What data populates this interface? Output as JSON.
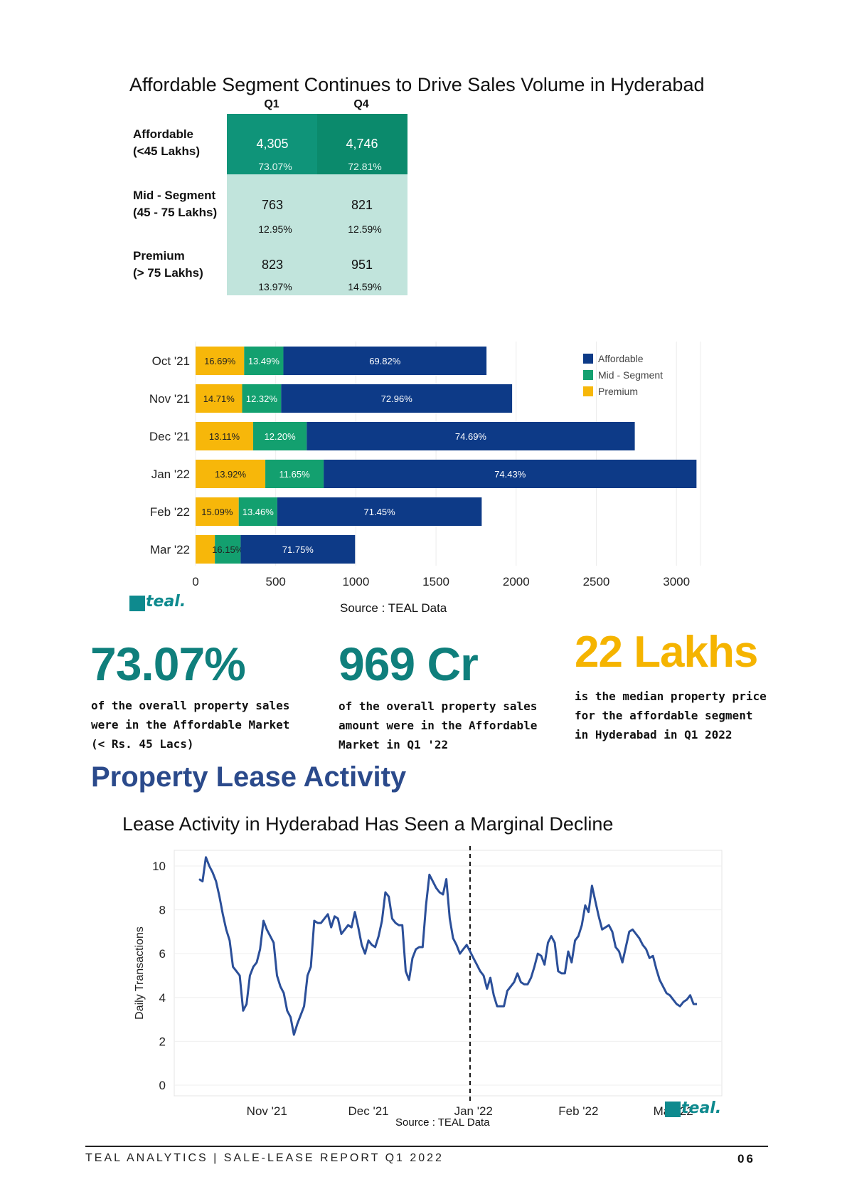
{
  "table": {
    "title": "Affordable Segment Continues to Drive Sales Volume in Hyderabad",
    "columns": [
      "Q1",
      "Q4"
    ],
    "rows": [
      {
        "label": "Affordable\n(<45 Lakhs)",
        "q1": "4,305",
        "q1_pct": "73.07%",
        "q4": "4,746",
        "q4_pct": "72.81%"
      },
      {
        "label": "Mid - Segment\n(45 - 75 Lakhs)",
        "q1": "763",
        "q1_pct": "12.95%",
        "q4": "821",
        "q4_pct": "12.59%"
      },
      {
        "label": "Premium\n(> 75 Lakhs)",
        "q1": "823",
        "q1_pct": "13.97%",
        "q4": "951",
        "q4_pct": "14.59%"
      }
    ]
  },
  "chart_data": [
    {
      "type": "bar",
      "orientation": "horizontal",
      "stacked": true,
      "categories": [
        "Oct '21",
        "Nov '21",
        "Dec '21",
        "Jan '22",
        "Feb '22",
        "Mar '22"
      ],
      "totals": [
        1815,
        1975,
        2740,
        3125,
        1785,
        995
      ],
      "series": [
        {
          "name": "Premium",
          "color": "#f7b70a",
          "labels": [
            "16.69%",
            "14.71%",
            "13.11%",
            "13.92%",
            "15.09%",
            ""
          ],
          "share": [
            0.1669,
            0.1471,
            0.1311,
            0.1392,
            0.1509,
            0.121
          ]
        },
        {
          "name": "Mid - Segment",
          "color": "#13a06f",
          "labels": [
            "13.49%",
            "12.32%",
            "12.20%",
            "11.65%",
            "13.46%",
            "16.15%"
          ],
          "share": [
            0.1349,
            0.1232,
            0.122,
            0.1165,
            0.1346,
            0.1615
          ]
        },
        {
          "name": "Affordable",
          "color": "#0d3a87",
          "labels": [
            "69.82%",
            "72.96%",
            "74.69%",
            "74.43%",
            "71.45%",
            "71.75%"
          ],
          "share": [
            0.6982,
            0.7296,
            0.7469,
            0.7443,
            0.7145,
            0.7175
          ]
        }
      ],
      "legend": [
        "Affordable",
        "Mid - Segment",
        "Premium"
      ],
      "xticks": [
        0,
        500,
        1000,
        1500,
        2000,
        2500,
        3000
      ],
      "xlim": [
        0,
        3150
      ],
      "source": "Source : TEAL Data",
      "legend_position": "top-right"
    },
    {
      "type": "line",
      "title": "Lease Activity in Hyderabad Has Seen a Marginal Decline",
      "ylabel": "Daily Transactions",
      "ylim": [
        0,
        10.8
      ],
      "yticks": [
        0,
        2,
        4,
        6,
        8,
        10
      ],
      "xticks": [
        {
          "label": "Nov '21",
          "day": 20
        },
        {
          "label": "Dec '21",
          "day": 50
        },
        {
          "label": "Jan '22",
          "day": 81
        },
        {
          "label": "Feb '22",
          "day": 112
        },
        {
          "label": "Mar '22",
          "day": 140
        }
      ],
      "marker_day": 80,
      "color": "#2b4f99",
      "source": "Source : TEAL Data",
      "series": [
        {
          "values": [
            [
              0,
              9.4
            ],
            [
              1,
              9.3
            ],
            [
              2,
              10.4
            ],
            [
              3,
              10.0
            ],
            [
              4,
              9.7
            ],
            [
              5,
              9.3
            ],
            [
              6,
              8.6
            ],
            [
              7,
              7.8
            ],
            [
              8,
              7.1
            ],
            [
              9,
              6.6
            ],
            [
              10,
              5.4
            ],
            [
              11,
              5.2
            ],
            [
              12,
              5.0
            ],
            [
              13,
              3.4
            ],
            [
              14,
              3.7
            ],
            [
              15,
              5.0
            ],
            [
              16,
              5.4
            ],
            [
              17,
              5.6
            ],
            [
              18,
              6.2
            ],
            [
              19,
              7.5
            ],
            [
              20,
              7.1
            ],
            [
              21,
              6.8
            ],
            [
              22,
              6.5
            ],
            [
              23,
              5.0
            ],
            [
              24,
              4.5
            ],
            [
              25,
              4.2
            ],
            [
              26,
              3.4
            ],
            [
              27,
              3.1
            ],
            [
              28,
              2.3
            ],
            [
              29,
              2.8
            ],
            [
              30,
              3.2
            ],
            [
              31,
              3.6
            ],
            [
              32,
              5.0
            ],
            [
              33,
              5.4
            ],
            [
              34,
              7.5
            ],
            [
              35,
              7.4
            ],
            [
              36,
              7.4
            ],
            [
              37,
              7.6
            ],
            [
              38,
              7.8
            ],
            [
              39,
              7.2
            ],
            [
              40,
              7.7
            ],
            [
              41,
              7.6
            ],
            [
              42,
              6.9
            ],
            [
              43,
              7.1
            ],
            [
              44,
              7.3
            ],
            [
              45,
              7.2
            ],
            [
              46,
              7.9
            ],
            [
              47,
              7.2
            ],
            [
              48,
              6.4
            ],
            [
              49,
              6.0
            ],
            [
              50,
              6.6
            ],
            [
              51,
              6.4
            ],
            [
              52,
              6.3
            ],
            [
              53,
              6.8
            ],
            [
              54,
              7.5
            ],
            [
              55,
              8.8
            ],
            [
              56,
              8.6
            ],
            [
              57,
              7.6
            ],
            [
              58,
              7.4
            ],
            [
              59,
              7.3
            ],
            [
              60,
              7.3
            ],
            [
              61,
              5.2
            ],
            [
              62,
              4.8
            ],
            [
              63,
              5.8
            ],
            [
              64,
              6.2
            ],
            [
              65,
              6.3
            ],
            [
              66,
              6.3
            ],
            [
              67,
              8.2
            ],
            [
              68,
              9.6
            ],
            [
              69,
              9.3
            ],
            [
              70,
              9.0
            ],
            [
              71,
              8.8
            ],
            [
              72,
              8.7
            ],
            [
              73,
              9.4
            ],
            [
              74,
              7.6
            ],
            [
              75,
              6.7
            ],
            [
              76,
              6.4
            ],
            [
              77,
              6.0
            ],
            [
              78,
              6.2
            ],
            [
              79,
              6.4
            ],
            [
              80,
              6.1
            ],
            [
              81,
              5.8
            ],
            [
              82,
              5.5
            ],
            [
              83,
              5.2
            ],
            [
              84,
              5.0
            ],
            [
              85,
              4.4
            ],
            [
              86,
              4.9
            ],
            [
              87,
              4.1
            ],
            [
              88,
              3.6
            ],
            [
              89,
              3.6
            ],
            [
              90,
              3.6
            ],
            [
              91,
              4.3
            ],
            [
              92,
              4.5
            ],
            [
              93,
              4.7
            ],
            [
              94,
              5.1
            ],
            [
              95,
              4.7
            ],
            [
              96,
              4.6
            ],
            [
              97,
              4.6
            ],
            [
              98,
              4.9
            ],
            [
              99,
              5.4
            ],
            [
              100,
              6.0
            ],
            [
              101,
              5.9
            ],
            [
              102,
              5.5
            ],
            [
              103,
              6.5
            ],
            [
              104,
              6.8
            ],
            [
              105,
              6.5
            ],
            [
              106,
              5.2
            ],
            [
              107,
              5.1
            ],
            [
              108,
              5.1
            ],
            [
              109,
              6.1
            ],
            [
              110,
              5.6
            ],
            [
              111,
              6.6
            ],
            [
              112,
              6.8
            ],
            [
              113,
              7.3
            ],
            [
              114,
              8.2
            ],
            [
              115,
              7.9
            ],
            [
              116,
              9.1
            ],
            [
              117,
              8.4
            ],
            [
              118,
              7.7
            ],
            [
              119,
              7.1
            ],
            [
              120,
              7.2
            ],
            [
              121,
              7.3
            ],
            [
              122,
              7.0
            ],
            [
              123,
              6.3
            ],
            [
              124,
              6.1
            ],
            [
              125,
              5.6
            ],
            [
              126,
              6.3
            ],
            [
              127,
              7.0
            ],
            [
              128,
              7.1
            ],
            [
              129,
              6.9
            ],
            [
              130,
              6.7
            ],
            [
              131,
              6.4
            ],
            [
              132,
              6.2
            ],
            [
              133,
              5.8
            ],
            [
              134,
              5.9
            ],
            [
              135,
              5.3
            ],
            [
              136,
              4.8
            ],
            [
              137,
              4.5
            ],
            [
              138,
              4.2
            ],
            [
              139,
              4.1
            ],
            [
              140,
              3.9
            ],
            [
              141,
              3.7
            ],
            [
              142,
              3.6
            ],
            [
              143,
              3.8
            ],
            [
              144,
              3.9
            ],
            [
              145,
              4.1
            ],
            [
              146,
              3.7
            ],
            [
              147,
              3.7
            ]
          ]
        }
      ]
    }
  ],
  "stats": [
    {
      "value": "73.07%",
      "text": "of the overall property sales were in the Affordable Market (< Rs. 45 Lacs)",
      "color": "#0f7f7c"
    },
    {
      "value": "969 Cr",
      "text": "of the overall property sales amount were in the Affordable Market in Q1 '22",
      "color": "#0f7f7c"
    },
    {
      "value": "22 Lakhs",
      "text": "is the median property price for the affordable segment in Hyderabad in Q1 2022",
      "color": "#f5b400"
    }
  ],
  "section_title": "Property Lease Activity",
  "logo": "teal.",
  "footer": {
    "text": "TEAL ANALYTICS | SALE-LEASE REPORT Q1 2022",
    "page": "06"
  },
  "colors": {
    "table_dark": "#0f9479",
    "table_dark_q4": "#0b8a6c",
    "table_light": "#c1e4dc",
    "brand_teal": "#0e8a8e",
    "section_blue": "#2b4a8b"
  }
}
